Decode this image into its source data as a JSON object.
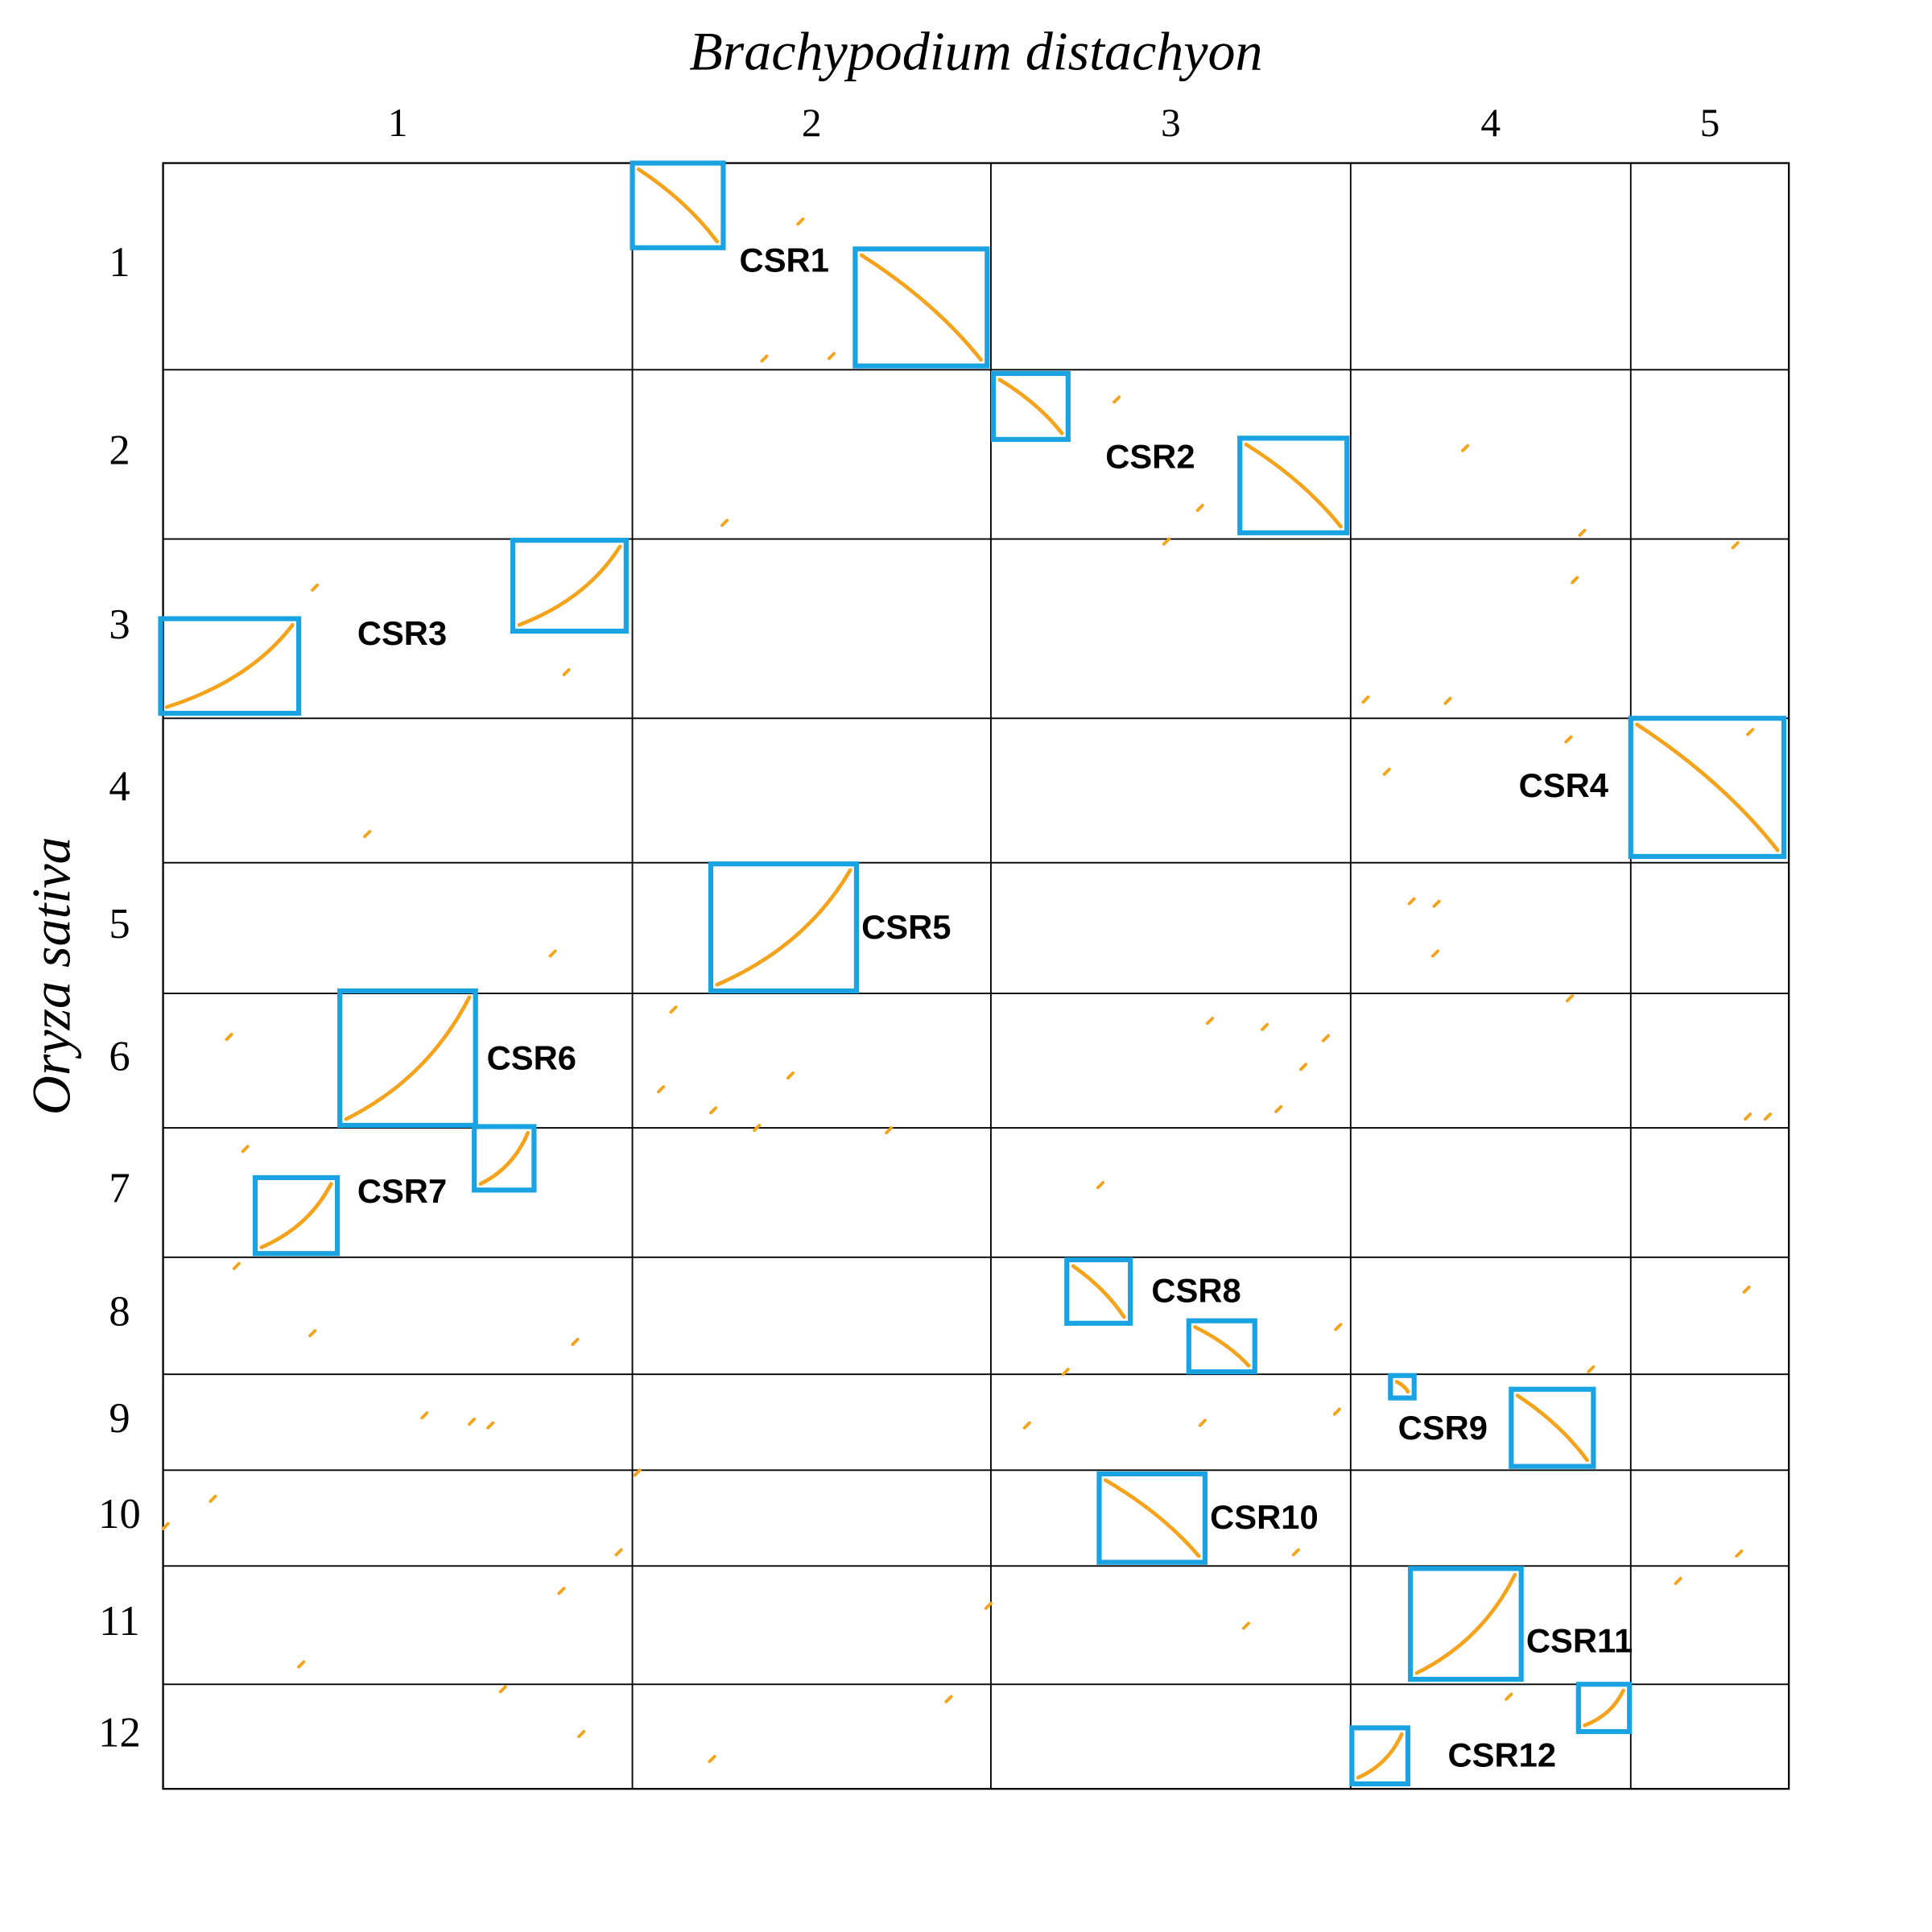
{
  "x_axis": {
    "title": "Brachypodium distachyon",
    "labels": [
      "1",
      "2",
      "3",
      "4",
      "5"
    ]
  },
  "y_axis": {
    "title": "Oryza sativa",
    "labels": [
      "1",
      "2",
      "3",
      "4",
      "5",
      "6",
      "7",
      "8",
      "9",
      "10",
      "11",
      "12"
    ]
  },
  "regions": [
    {
      "label": "CSR1"
    },
    {
      "label": "CSR2"
    },
    {
      "label": "CSR3"
    },
    {
      "label": "CSR4"
    },
    {
      "label": "CSR5"
    },
    {
      "label": "CSR6"
    },
    {
      "label": "CSR7"
    },
    {
      "label": "CSR8"
    },
    {
      "label": "CSR9"
    },
    {
      "label": "CSR10"
    },
    {
      "label": "CSR11"
    },
    {
      "label": "CSR12"
    }
  ]
}
